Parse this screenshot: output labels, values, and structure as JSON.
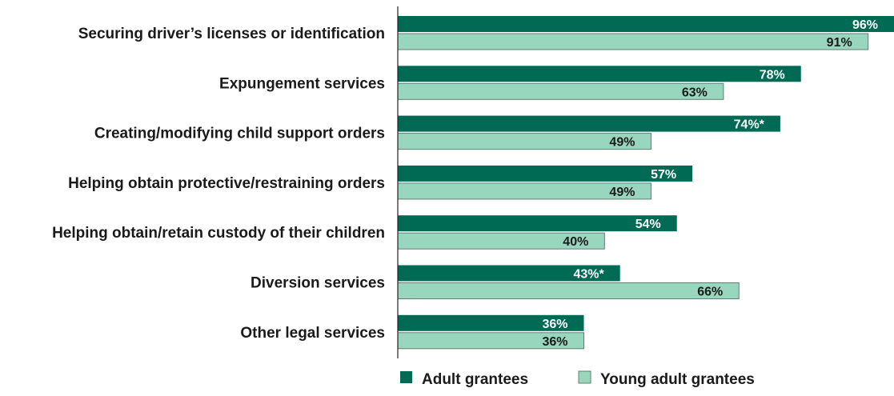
{
  "chart_data": {
    "type": "bar",
    "orientation": "horizontal",
    "categories": [
      "Securing driver’s licenses or identification",
      "Expungement services",
      "Creating/modifying child support orders",
      "Helping obtain protective/restraining orders",
      "Helping obtain/retain custody of their children",
      "Diversion services",
      "Other legal services"
    ],
    "series": [
      {
        "name": "Adult grantees",
        "color": "#006a55",
        "values": [
          96,
          78,
          74,
          57,
          54,
          43,
          36
        ],
        "labels": [
          "96%",
          "78%",
          "74%*",
          "57%",
          "54%",
          "43%*",
          "36%"
        ]
      },
      {
        "name": "Young adult grantees",
        "color": "#98d7bd",
        "values": [
          91,
          63,
          49,
          49,
          40,
          66,
          36
        ],
        "labels": [
          "91%",
          "63%",
          "49%",
          "49%",
          "40%",
          "66%",
          "36%"
        ]
      }
    ],
    "xlim": [
      0,
      96
    ],
    "grid": false,
    "legend_position": "bottom"
  }
}
